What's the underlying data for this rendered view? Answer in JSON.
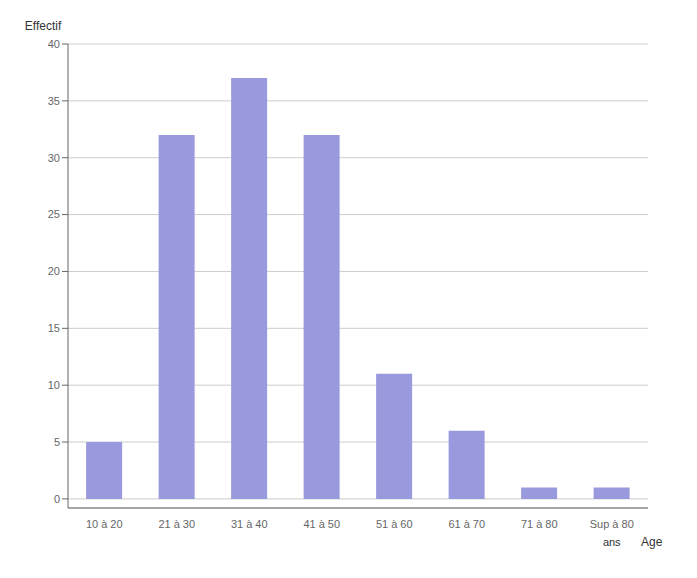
{
  "chart_data": {
    "type": "bar",
    "categories": [
      "10 à 20",
      "21 à 30",
      "31 à 40",
      "41 à 50",
      "51 à 60",
      "61 à 70",
      "71 à 80",
      "Sup à 80"
    ],
    "values": [
      5,
      32,
      37,
      32,
      11,
      6,
      1,
      1
    ],
    "color": "#9999dd",
    "ylim": [
      -0.8,
      40
    ],
    "yticks": [
      0,
      5,
      10,
      15,
      20,
      25,
      30,
      35,
      40
    ],
    "grid": true,
    "ylabel": "Effectif",
    "xlabel": "Age",
    "annotations": [
      "ans"
    ]
  }
}
